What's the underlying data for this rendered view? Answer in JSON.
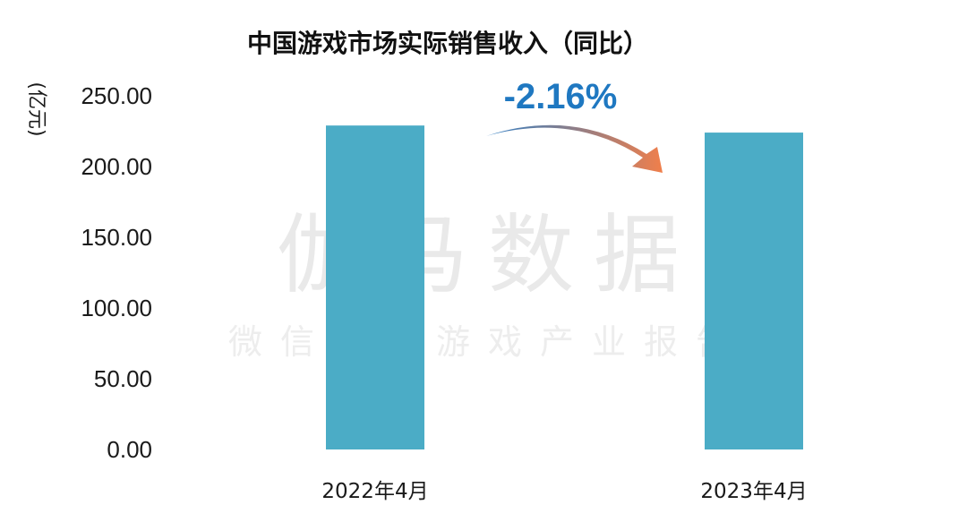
{
  "chart_data": {
    "type": "bar",
    "title": "中国游戏市场实际销售收入（同比）",
    "ylabel": "(亿元)",
    "xlabel": "",
    "categories": [
      "2022年4月",
      "2023年4月"
    ],
    "values": [
      229.0,
      224.0
    ],
    "ylim": [
      0,
      250
    ],
    "yticks": [
      "0.00",
      "50.00",
      "100.00",
      "150.00",
      "200.00",
      "250.00"
    ],
    "ytick_values": [
      0,
      50,
      100,
      150,
      200,
      250
    ],
    "grid": false,
    "bar_color": "#4bacc6",
    "annotation": {
      "text": "-2.16%",
      "color": "#1f78c1",
      "arrow_colors": [
        "#2e7dc4",
        "#f07f4b"
      ]
    }
  },
  "watermark": {
    "main": "伽马数据",
    "sub": "微信号：游戏产业报告"
  }
}
